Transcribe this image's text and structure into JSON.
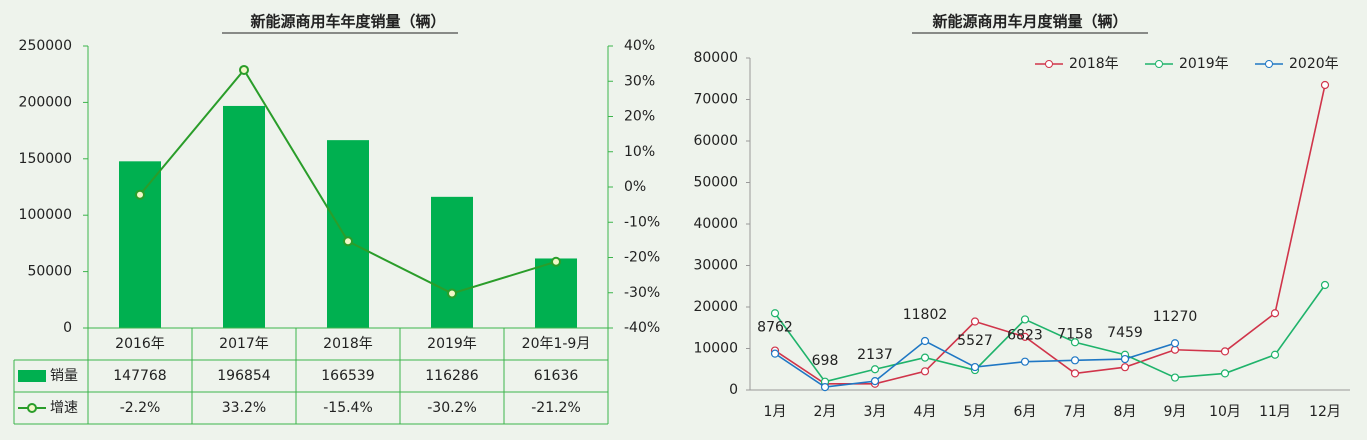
{
  "chart_data": [
    {
      "type": "bar",
      "title": "新能源商用车年度销量（辆）",
      "categories": [
        "2016年",
        "2017年",
        "2018年",
        "2019年",
        "20年1-9月"
      ],
      "series": [
        {
          "name": "销量",
          "color": "#00b050",
          "values": [
            147768,
            196854,
            166539,
            116286,
            61636
          ]
        },
        {
          "name": "增速",
          "color": "#2a9d2a",
          "axis": "y2",
          "values": [
            -2.2,
            33.2,
            -15.4,
            -30.2,
            -21.2
          ],
          "value_labels": [
            "-2.2%",
            "33.2%",
            "-15.4%",
            "-30.2%",
            "-21.2%"
          ]
        }
      ],
      "ylim": [
        0,
        250000
      ],
      "yticks": [
        0,
        50000,
        100000,
        150000,
        200000,
        250000
      ],
      "y2lim": [
        -40,
        40
      ],
      "y2ticks": [
        {
          "value": -40,
          "label": "-40%"
        },
        {
          "value": -30,
          "label": "-30%"
        },
        {
          "value": -20,
          "label": "-20%"
        },
        {
          "value": -10,
          "label": "-10%"
        },
        {
          "value": 0,
          "label": "0%"
        },
        {
          "value": 10,
          "label": "10%"
        },
        {
          "value": 20,
          "label": "20%"
        },
        {
          "value": 30,
          "label": "30%"
        },
        {
          "value": 40,
          "label": "40%"
        }
      ]
    },
    {
      "type": "line",
      "title": "新能源商用车月度销量（辆）",
      "categories": [
        "1月",
        "2月",
        "3月",
        "4月",
        "5月",
        "6月",
        "7月",
        "8月",
        "9月",
        "10月",
        "11月",
        "12月"
      ],
      "series": [
        {
          "name": "2018年",
          "color": "#d0344a",
          "values": [
            9500,
            1500,
            1500,
            4500,
            16500,
            12800,
            4000,
            5500,
            9700,
            9300,
            18500,
            73500
          ]
        },
        {
          "name": "2019年",
          "color": "#1fb36b",
          "values": [
            18500,
            2000,
            5000,
            7800,
            4800,
            17000,
            11500,
            8500,
            3000,
            4000,
            8500,
            25300
          ]
        },
        {
          "name": "2020年",
          "color": "#1f77c4",
          "values": [
            8762,
            698,
            2137,
            11802,
            5527,
            6823,
            7158,
            7459,
            11270,
            null,
            null,
            null
          ],
          "data_labels": true
        }
      ],
      "ylim": [
        0,
        80000
      ],
      "yticks": [
        0,
        10000,
        20000,
        30000,
        40000,
        50000,
        60000,
        70000,
        80000
      ],
      "legend": "top"
    }
  ]
}
